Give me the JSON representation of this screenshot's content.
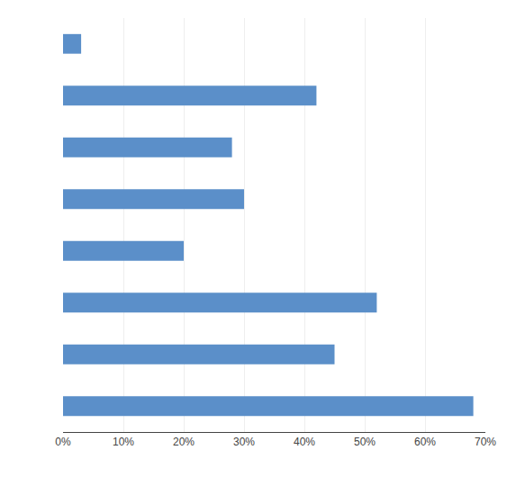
{
  "chart_data": {
    "type": "bar",
    "orientation": "horizontal",
    "categories": [
      null,
      null,
      null,
      null,
      null,
      null,
      null,
      null
    ],
    "values": [
      3,
      42,
      28,
      30,
      20,
      52,
      45,
      68
    ],
    "color": "#5b8fc9",
    "xlim": [
      0,
      70
    ],
    "xticks": [
      {
        "value": 0,
        "label": "0%"
      },
      {
        "value": 10,
        "label": "10%"
      },
      {
        "value": 20,
        "label": "20%"
      },
      {
        "value": 30,
        "label": "30%"
      },
      {
        "value": 40,
        "label": "40%"
      },
      {
        "value": 50,
        "label": "50%"
      },
      {
        "value": 60,
        "label": "60%"
      },
      {
        "value": 70,
        "label": "70%"
      }
    ],
    "grid": true,
    "tick_labels": "x"
  }
}
